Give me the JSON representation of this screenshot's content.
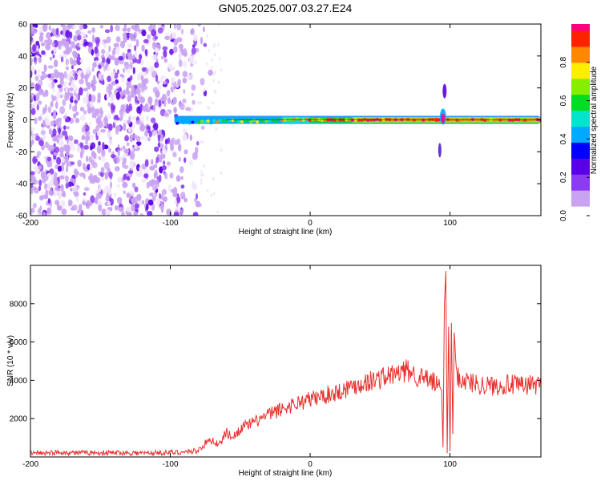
{
  "title": "GN05.2025.007.03.27.E24",
  "colors": {
    "line": "#e8312f",
    "frame": "#000000",
    "colormap": [
      "#f2e6fb",
      "#c9a3f1",
      "#8b3cf0",
      "#5a00e6",
      "#0000ff",
      "#00aaff",
      "#00e5cc",
      "#00dd22",
      "#88ee00",
      "#ffee00",
      "#ff8800",
      "#ff2200",
      "#ff0080"
    ]
  },
  "chart_data": [
    {
      "type": "heatmap",
      "title": "GN05.2025.007.03.27.E24",
      "xlabel": "Height of straight line (km)",
      "ylabel": "Frequency (Hz)",
      "xlim": [
        -200,
        165
      ],
      "ylim": [
        -60,
        60
      ],
      "xticks": [
        "-200",
        "-100",
        "0",
        "100"
      ],
      "yticks": [
        "60",
        "40",
        "20",
        "0",
        "-20",
        "-40",
        "-60"
      ],
      "colorbar": {
        "label": "Normalized spectral amplitude",
        "range": [
          0,
          1
        ],
        "ticks": [
          "0.0",
          "0.2",
          "0.4",
          "0.6",
          "0.8"
        ]
      },
      "features": {
        "noise_region_x": [
          -200,
          -78
        ],
        "signal_band": {
          "x_start": -97,
          "x_end": 165,
          "frequency_hz": 0
        },
        "spike": {
          "x": 95,
          "frequency_range_hz": [
            -28,
            22
          ]
        }
      }
    },
    {
      "type": "line",
      "title": "",
      "xlabel": "Height of straight line (km)",
      "ylabel": "SNR (10 * v/v)",
      "xlim": [
        -200,
        165
      ],
      "ylim": [
        0,
        10000
      ],
      "xticks": [
        "-200",
        "-100",
        "0",
        "100"
      ],
      "yticks": [
        "2000",
        "4000",
        "6000",
        "8000"
      ],
      "series": [
        {
          "x": [
            -200,
            -180,
            -160,
            -140,
            -120,
            -100,
            -90,
            -80,
            -75,
            -70,
            -65,
            -60,
            -55,
            -50,
            -40,
            -30,
            -20,
            -10,
            0,
            10,
            20,
            30,
            40,
            50,
            60,
            70,
            80,
            85,
            90,
            94,
            95,
            96,
            97,
            98,
            99,
            100,
            101,
            102,
            103,
            105,
            110,
            120,
            130,
            140,
            150,
            160,
            165
          ],
          "y": [
            150,
            180,
            160,
            170,
            150,
            180,
            200,
            350,
            700,
            900,
            600,
            1300,
            1000,
            1500,
            1800,
            2200,
            2500,
            2800,
            3000,
            3200,
            3400,
            3700,
            3900,
            4100,
            4300,
            4500,
            4100,
            4000,
            3800,
            3500,
            500,
            8000,
            9700,
            200,
            6800,
            300,
            7000,
            1200,
            6500,
            4200,
            4000,
            3800,
            3700,
            3800,
            3700,
            3800,
            3800
          ]
        }
      ]
    }
  ]
}
